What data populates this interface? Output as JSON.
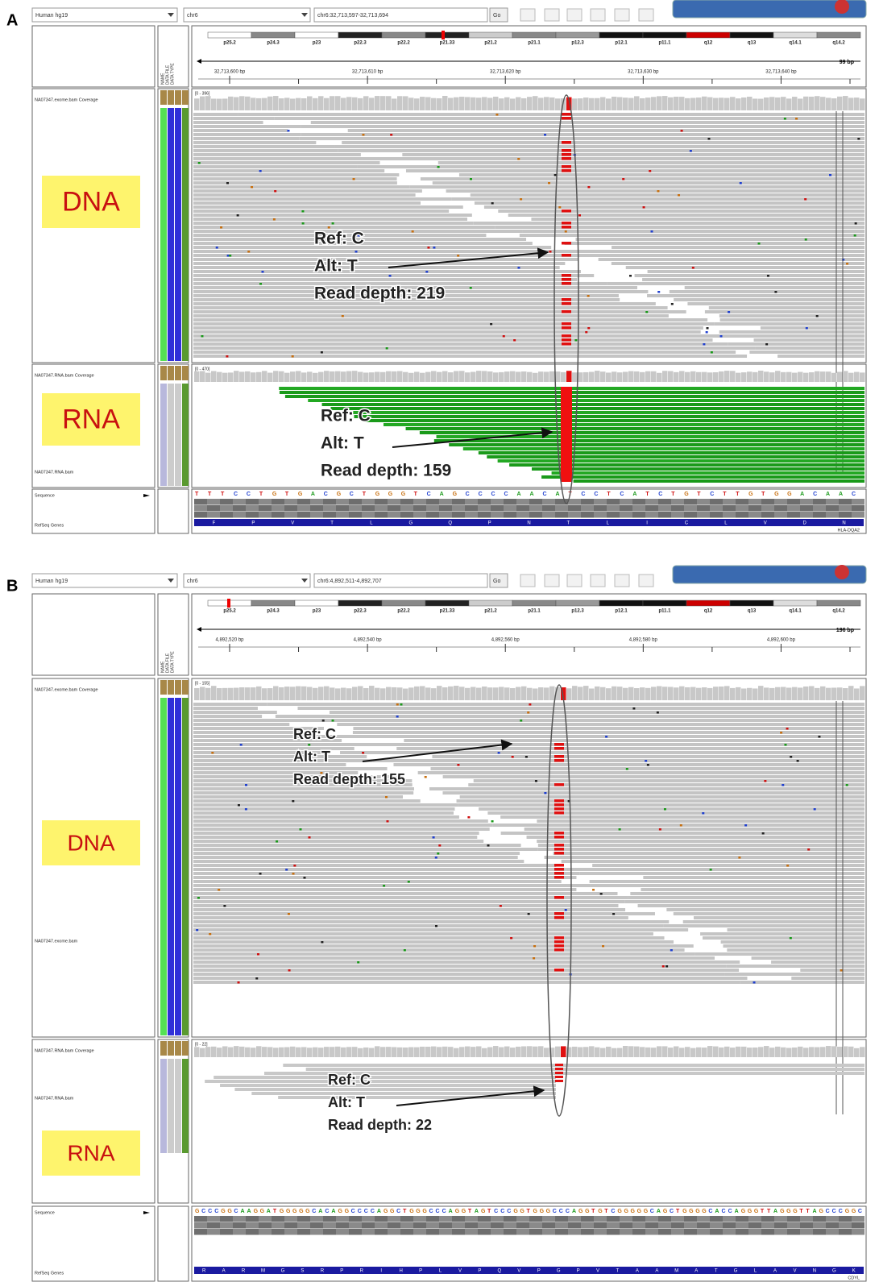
{
  "panels": [
    {
      "label": "A",
      "toolbar": {
        "genome": "Human hg19",
        "chromosome": "chr6",
        "locus": "chr6:32,713,597-32,713,694",
        "go": "Go"
      },
      "cytobands": [
        "p25.2",
        "p24.3",
        "p23",
        "p22.3",
        "p22.2",
        "p21.33",
        "p21.2",
        "p21.1",
        "p12.3",
        "p12.1",
        "p11.1",
        "q12",
        "q13",
        "q14.1",
        "q14.2"
      ],
      "span": "99 bp",
      "ruler_ticks": [
        "32,713,600 bp",
        "32,713,610 bp",
        "32,713,620 bp",
        "32,713,630 bp",
        "32,713,640 bp"
      ],
      "attribute_headers": [
        "NAME",
        "DATA FILE",
        "DATA TYPE"
      ],
      "tracks": {
        "dna_coverage": "NA07347.exome.bam Coverage",
        "dna_range": "[0 - 396]",
        "rna_coverage": "NA07347.RNA.bam Coverage",
        "rna_range": "[0 - 470]",
        "rna_reads": "NA07347.RNA.bam",
        "sequence": "Sequence",
        "refseq": "RefSeq Genes"
      },
      "sequence_bases": "TTTCCTGTGACGCTGGGTCAGCCCCAACATCCTCATCTGTCTTGTGGACAAC",
      "amino_acids": [
        "F",
        "P",
        "V",
        "T",
        "L",
        "G",
        "Q",
        "P",
        "N",
        "T",
        "L",
        "I",
        "C",
        "L",
        "V",
        "D",
        "N"
      ],
      "gene": "HLA-DQA2",
      "dna_label": "DNA",
      "rna_label": "RNA",
      "dna_annotation": [
        "Ref: C",
        "Alt: T",
        "Read depth: 219"
      ],
      "rna_annotation": [
        "Ref: C",
        "Alt: T",
        "Read depth: 159"
      ]
    },
    {
      "label": "B",
      "toolbar": {
        "genome": "Human hg19",
        "chromosome": "chr6",
        "locus": "chr6:4,892,511-4,892,707",
        "go": "Go"
      },
      "cytobands": [
        "p25.2",
        "p24.3",
        "p23",
        "p22.3",
        "p22.2",
        "p21.33",
        "p21.2",
        "p21.1",
        "p12.3",
        "p12.1",
        "p11.1",
        "q12",
        "q13",
        "q14.1",
        "q14.2"
      ],
      "span": "196 bp",
      "ruler_ticks": [
        "4,892,520 bp",
        "4,892,540 bp",
        "4,892,560 bp",
        "4,892,580 bp",
        "4,892,600 bp"
      ],
      "attribute_headers": [
        "NAME",
        "DATA FILE",
        "DATA TYPE"
      ],
      "tracks": {
        "dna_coverage": "NA07347.exome.bam Coverage",
        "dna_range": "[0 - 155]",
        "dna_reads": "NA07347.exome.bam",
        "rna_coverage": "NA07347.RNA.bam Coverage",
        "rna_range": "[0 - 22]",
        "rna_reads": "NA07347.RNA.bam",
        "sequence": "Sequence",
        "refseq": "RefSeq Genes"
      },
      "sequence_bases": "GCCCGGCAAGGATGGGGGCACAGGCCCCAGGCTGGGCCCAGGTAGTCCCGGTGGGCCCAGGTGTCGGGGGCAGCTGGGGCACCAGGGTTAGGGTTAGCCCGGC",
      "amino_acids": [
        "R",
        "A",
        "R",
        "M",
        "G",
        "S",
        "R",
        "P",
        "R",
        "I",
        "H",
        "P",
        "L",
        "V",
        "P",
        "Q",
        "V",
        "P",
        "G",
        "P",
        "V",
        "T",
        "A",
        "A",
        "M",
        "A",
        "T",
        "G",
        "L",
        "A",
        "V",
        "N",
        "G",
        "K"
      ],
      "gene": "CDYL",
      "dna_label": "DNA",
      "rna_label": "RNA",
      "dna_annotation": [
        "Ref: C",
        "Alt: T",
        "Read depth: 155"
      ],
      "rna_annotation": [
        "Ref: C",
        "Alt: T",
        "Read depth: 22"
      ]
    }
  ]
}
